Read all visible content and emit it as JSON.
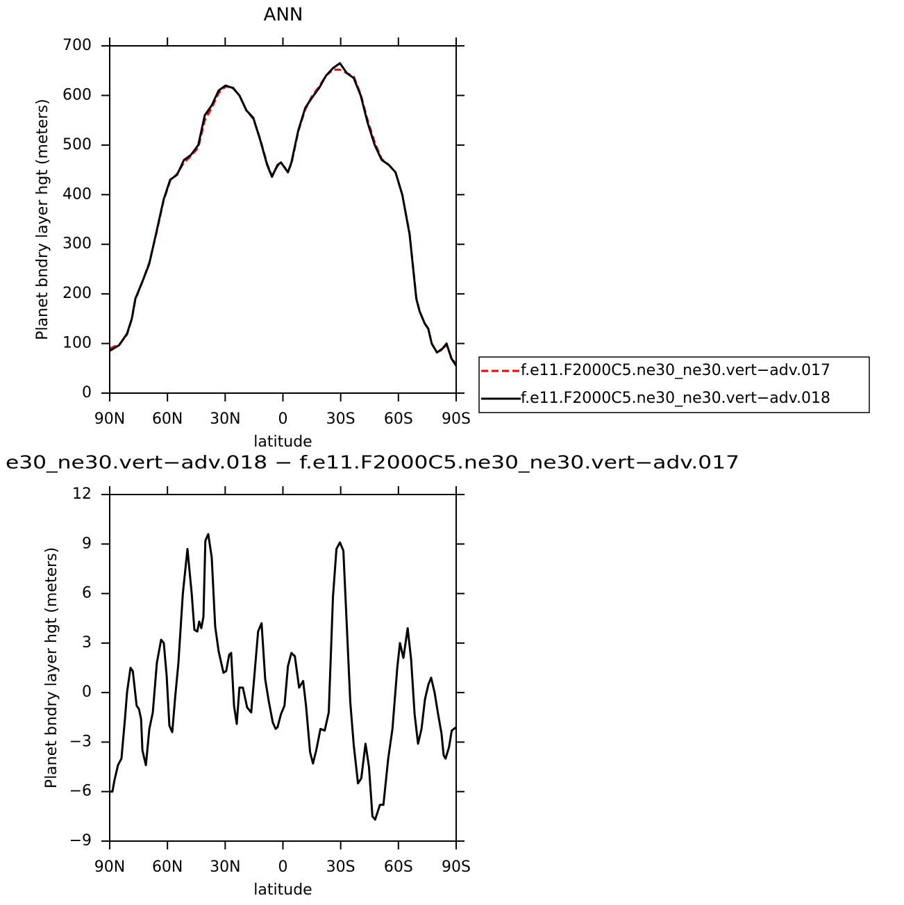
{
  "chart_data": [
    {
      "type": "line",
      "title": "ANN",
      "xlabel": "latitude",
      "ylabel": "Planet bndry layer hgt (meters)",
      "xlim": [
        90,
        -90
      ],
      "ylim": [
        0,
        700
      ],
      "xticks": [
        {
          "value": 90,
          "label": "90N"
        },
        {
          "value": 60,
          "label": "60N"
        },
        {
          "value": 30,
          "label": "30N"
        },
        0,
        {
          "value": -30,
          "label": "30S"
        },
        {
          "value": -60,
          "label": "60S"
        },
        {
          "value": -90,
          "label": "90S"
        }
      ],
      "yticks": [
        0,
        100,
        200,
        300,
        400,
        500,
        600,
        700
      ],
      "legend": "right",
      "x": [
        90,
        85,
        81,
        78.5,
        76.7,
        73,
        69.5,
        66,
        62,
        58.6,
        55,
        51.4,
        47.8,
        44,
        40.6,
        37,
        33.4,
        29.8,
        26,
        22.6,
        19,
        15.4,
        11.8,
        8.2,
        5.7,
        2.8,
        1,
        -2.6,
        -4.4,
        -8,
        -11.6,
        -15,
        -18.8,
        -22.4,
        -26,
        -29.6,
        -33.2,
        -36.8,
        -40.4,
        -44,
        -47.7,
        -51.3,
        -55,
        -58.5,
        -62,
        -65.8,
        -69.3,
        -71,
        -73.7,
        -75.5,
        -77.3,
        -80,
        -83,
        -85,
        -87.5,
        -90
      ],
      "series": [
        {
          "name": "f.e11.F2000C5.ne30_ne30.vert−adv.017",
          "color": "#ff0000",
          "dash": true,
          "values": [
            90,
            98,
            118,
            150,
            188,
            225,
            262,
            318,
            388,
            428,
            442,
            465,
            478,
            495,
            550,
            575,
            605,
            618,
            616,
            600,
            570,
            553,
            512,
            462,
            438,
            458,
            464,
            447,
            462,
            528,
            572,
            598,
            618,
            640,
            652,
            652,
            645,
            638,
            602,
            550,
            505,
            472,
            460,
            445,
            400,
            322,
            192,
            165,
            140,
            130,
            100,
            82,
            88,
            98,
            72,
            57
          ]
        },
        {
          "name": "f.e11.F2000C5.ne30_ne30.vert−adv.018",
          "color": "#000000",
          "dash": false,
          "values": [
            85,
            97,
            120,
            150,
            190,
            225,
            260,
            320,
            390,
            430,
            440,
            470,
            480,
            500,
            560,
            580,
            610,
            620,
            615,
            600,
            570,
            555,
            510,
            460,
            436,
            460,
            465,
            445,
            465,
            530,
            575,
            595,
            615,
            640,
            655,
            665,
            645,
            635,
            600,
            545,
            500,
            470,
            460,
            445,
            400,
            320,
            190,
            165,
            140,
            130,
            100,
            82,
            90,
            100,
            70,
            55
          ]
        }
      ]
    },
    {
      "type": "line",
      "title": "e30_ne30.vert−adv.018 − f.e11.F2000C5.ne30_ne30.vert−adv.017",
      "xlabel": "latitude",
      "ylabel": "Planet bndry layer hgt (meters)",
      "xlim": [
        90,
        -90
      ],
      "ylim": [
        -9,
        12
      ],
      "xticks": [
        {
          "value": 90,
          "label": "90N"
        },
        {
          "value": 60,
          "label": "60N"
        },
        {
          "value": 30,
          "label": "30N"
        },
        0,
        {
          "value": -30,
          "label": "30S"
        },
        {
          "value": -60,
          "label": "60S"
        },
        {
          "value": -90,
          "label": "90S"
        }
      ],
      "yticks": [
        {
          "value": -9,
          "label": "−9"
        },
        {
          "value": -6,
          "label": "−6"
        },
        {
          "value": -3,
          "label": "−3"
        },
        0,
        3,
        6,
        9,
        12
      ],
      "color": "#000000",
      "x": [
        90,
        88.6,
        87.5,
        85.7,
        83.9,
        82,
        81,
        79.2,
        78,
        76,
        74.8,
        73.7,
        73,
        71.2,
        69.4,
        67.6,
        65.5,
        63.3,
        61.9,
        60.4,
        59,
        57.5,
        56,
        54.3,
        52,
        49.6,
        47.4,
        46,
        44.5,
        43.5,
        42.4,
        41.3,
        40.3,
        38.8,
        37,
        35.2,
        33.4,
        30.9,
        29.5,
        27.9,
        26.9,
        25.4,
        24,
        22.6,
        20.8,
        18.6,
        16.5,
        15,
        12.9,
        11.1,
        9.2,
        7.4,
        5.3,
        3.8,
        2.8,
        1,
        -0.8,
        -2.6,
        -4.4,
        -6.2,
        -8.4,
        -10.5,
        -12,
        -14.1,
        -15.6,
        -17.3,
        -19.5,
        -21.7,
        -23.8,
        -26,
        -27.8,
        -29.6,
        -31.4,
        -33.2,
        -35,
        -36.8,
        -39,
        -40.7,
        -42.9,
        -44.7,
        -46.5,
        -47.9,
        -50.4,
        -52.2,
        -54.7,
        -56.9,
        -59.4,
        -60.8,
        -62.6,
        -64.8,
        -66.6,
        -68.4,
        -70.2,
        -72,
        -73.8,
        -75.6,
        -77,
        -78.8,
        -80.6,
        -82.4,
        -83.5,
        -84.5,
        -86.3,
        -87.7,
        -90
      ],
      "values": [
        -6,
        -6,
        -5.3,
        -4.4,
        -4,
        -1.5,
        0,
        1.5,
        1.3,
        -0.8,
        -1,
        -1.6,
        -3.5,
        -4.4,
        -2.2,
        -1.2,
        1.8,
        3.2,
        3,
        1,
        -2,
        -2.4,
        -0.3,
        1.8,
        6,
        8.7,
        6,
        3.8,
        3.7,
        4.3,
        3.9,
        4.6,
        9.2,
        9.6,
        8.2,
        4,
        2.5,
        1.2,
        1.3,
        2.3,
        2.4,
        -0.8,
        -1.9,
        0.3,
        0.3,
        -0.9,
        -1.2,
        0.8,
        3.7,
        4.2,
        0.8,
        -0.5,
        -1.8,
        -2.2,
        -2.1,
        -1.3,
        -0.8,
        1.6,
        2.4,
        2.2,
        0.3,
        0.7,
        -0.8,
        -3.6,
        -4.3,
        -3.5,
        -2.2,
        -2.3,
        -1.2,
        5.8,
        8.7,
        9.1,
        8.6,
        4,
        -0.6,
        -3.2,
        -5.5,
        -5.2,
        -3.1,
        -4.5,
        -7.5,
        -7.7,
        -6.8,
        -6.8,
        -4,
        -2.2,
        1.5,
        3,
        2.1,
        3.9,
        2,
        -1.3,
        -3.1,
        -2.2,
        -0.4,
        0.5,
        0.9,
        0,
        -1.3,
        -2.5,
        -3.8,
        -4,
        -3.3,
        -2.3,
        -2.1
      ]
    }
  ]
}
